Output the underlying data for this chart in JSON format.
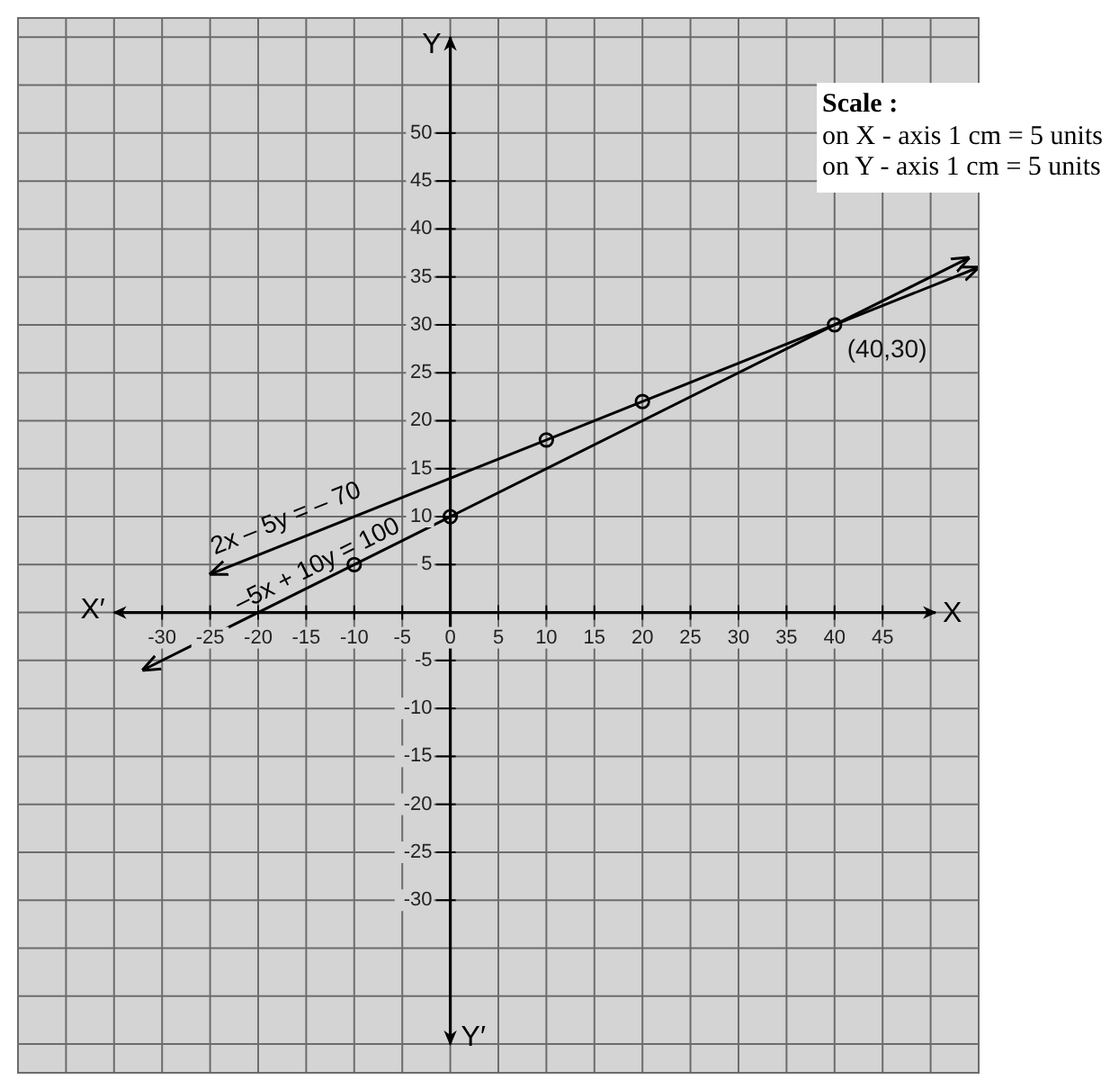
{
  "chart_data": {
    "type": "line",
    "xlabel": "X",
    "ylabel": "Y",
    "annotations": [
      {
        "text": "(40,30)",
        "x": 40,
        "y": 30
      },
      "X′",
      "Y′",
      "Scale :",
      "on X - axis 1 cm = 5 units",
      "on Y - axis 1 cm = 5 units"
    ],
    "series": [
      {
        "name": "2x – 5y = – 70",
        "color": "#000000",
        "marker": "none",
        "x": [
          -25,
          10,
          20,
          40,
          55
        ],
        "values": [
          4,
          18,
          22,
          30,
          36
        ]
      },
      {
        "name": "–5x + 10y = 100",
        "color": "#000000",
        "marker": "none",
        "x": [
          -32,
          -10,
          0,
          40,
          54
        ],
        "values": [
          -6,
          5,
          10,
          30,
          37
        ]
      },
      {
        "type": "scatter",
        "color": "#000000",
        "marker": "circle",
        "x": [
          -10,
          0,
          10,
          20,
          40
        ],
        "values": [
          5,
          10,
          18,
          22,
          30
        ]
      }
    ],
    "xlim": [
      -45,
      55
    ],
    "ylim": [
      -48,
      62
    ],
    "xticks": [
      {
        "value": -45,
        "label": null
      },
      {
        "value": -40,
        "label": null
      },
      {
        "value": -35,
        "label": null
      },
      -30,
      -25,
      -20,
      -15,
      -10,
      -5,
      0,
      5,
      10,
      15,
      20,
      25,
      30,
      35,
      40,
      45,
      {
        "value": 50,
        "label": null
      },
      {
        "value": 55,
        "label": null
      }
    ],
    "yticks": [
      {
        "value": -45,
        "label": null
      },
      {
        "value": -40,
        "label": null
      },
      {
        "value": -35,
        "label": null
      },
      -30,
      -25,
      -20,
      -15,
      -10,
      -5,
      {
        "value": 0,
        "label": null
      },
      5,
      10,
      15,
      20,
      25,
      30,
      35,
      40,
      45,
      50,
      {
        "value": 55,
        "label": null
      },
      {
        "value": 60,
        "label": null
      }
    ],
    "grid": true
  }
}
